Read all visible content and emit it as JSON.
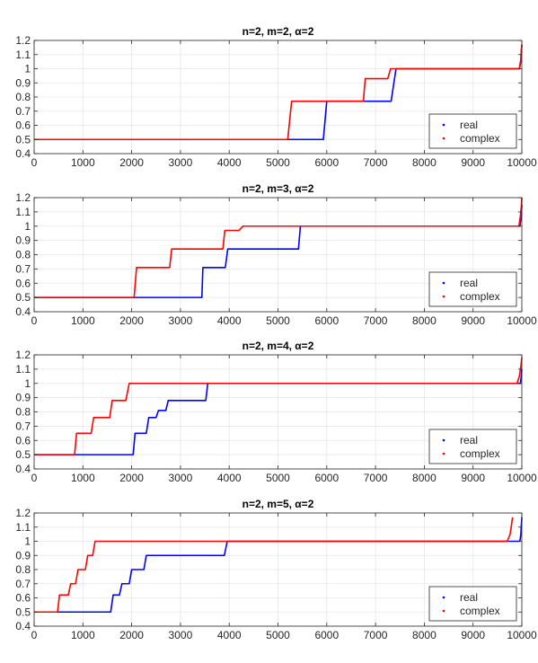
{
  "chart_data": [
    {
      "type": "line",
      "title": "n=2, m=2, α=2",
      "xlim": [
        0,
        10000
      ],
      "ylim": [
        0.4,
        1.2
      ],
      "xticks": [
        "0",
        "1000",
        "2000",
        "3000",
        "4000",
        "5000",
        "6000",
        "7000",
        "8000",
        "9000",
        "10000"
      ],
      "yticks": [
        "0.4",
        "0.5",
        "0.6",
        "0.7",
        "0.8",
        "0.9",
        "1",
        "1.1",
        "1.2"
      ],
      "grid": true,
      "legend": "bottom-right",
      "series": [
        {
          "name": "real",
          "color": "#0000ff",
          "x": [
            0,
            5930,
            6000,
            7320,
            7420,
            9950,
            9980,
            9990,
            10000
          ],
          "y": [
            0.5,
            0.5,
            0.77,
            0.77,
            1,
            1,
            1.05,
            1.12,
            1.17
          ]
        },
        {
          "name": "complex",
          "color": "#ff0000",
          "x": [
            0,
            5200,
            5280,
            6750,
            6790,
            7250,
            7310,
            9950,
            9980,
            9990,
            10000
          ],
          "y": [
            0.5,
            0.5,
            0.77,
            0.77,
            0.93,
            0.93,
            1,
            1,
            1.07,
            1.13,
            1.17
          ]
        }
      ]
    },
    {
      "type": "line",
      "title": "n=2, m=3, α=2",
      "xlim": [
        0,
        10000
      ],
      "ylim": [
        0.4,
        1.2
      ],
      "xticks": [
        "0",
        "1000",
        "2000",
        "3000",
        "4000",
        "5000",
        "6000",
        "7000",
        "8000",
        "9000",
        "10000"
      ],
      "yticks": [
        "0.4",
        "0.5",
        "0.6",
        "0.7",
        "0.8",
        "0.9",
        "1",
        "1.1",
        "1.2"
      ],
      "grid": true,
      "legend": "bottom-right",
      "series": [
        {
          "name": "real",
          "color": "#0000ff",
          "x": [
            0,
            3440,
            3460,
            3920,
            3970,
            5420,
            5460,
            9960,
            9990,
            10000
          ],
          "y": [
            0.5,
            0.5,
            0.71,
            0.71,
            0.84,
            0.84,
            1,
            1,
            1.08,
            1.15
          ]
        },
        {
          "name": "complex",
          "color": "#ff0000",
          "x": [
            0,
            2050,
            2100,
            2780,
            2820,
            3870,
            3910,
            4200,
            4280,
            9940,
            9970,
            9990,
            10000
          ],
          "y": [
            0.5,
            0.5,
            0.71,
            0.71,
            0.84,
            0.84,
            0.97,
            0.97,
            1,
            1,
            1.07,
            1.14,
            1.2
          ]
        }
      ]
    },
    {
      "type": "line",
      "title": "n=2, m=4, α=2",
      "xlim": [
        0,
        10000
      ],
      "ylim": [
        0.4,
        1.2
      ],
      "xticks": [
        "0",
        "1000",
        "2000",
        "3000",
        "4000",
        "5000",
        "6000",
        "7000",
        "8000",
        "9000",
        "10000"
      ],
      "yticks": [
        "0.4",
        "0.5",
        "0.6",
        "0.7",
        "0.8",
        "0.9",
        "1",
        "1.1",
        "1.2"
      ],
      "grid": true,
      "legend": "bottom-right",
      "series": [
        {
          "name": "real",
          "color": "#0000ff",
          "x": [
            0,
            2030,
            2070,
            2300,
            2350,
            2500,
            2550,
            2700,
            2750,
            3520,
            3560,
            9970,
            9990,
            10000
          ],
          "y": [
            0.5,
            0.5,
            0.65,
            0.65,
            0.76,
            0.76,
            0.81,
            0.81,
            0.88,
            0.88,
            1,
            1,
            1.05,
            1.1
          ]
        },
        {
          "name": "complex",
          "color": "#ff0000",
          "x": [
            0,
            830,
            870,
            1170,
            1220,
            1550,
            1600,
            1880,
            1950,
            9900,
            9950,
            9980,
            10000
          ],
          "y": [
            0.5,
            0.5,
            0.65,
            0.65,
            0.76,
            0.76,
            0.88,
            0.88,
            1,
            1,
            1.05,
            1.12,
            1.18
          ]
        }
      ]
    },
    {
      "type": "line",
      "title": "n=2, m=5, α=2",
      "xlim": [
        0,
        10000
      ],
      "ylim": [
        0.4,
        1.2
      ],
      "xticks": [
        "0",
        "1000",
        "2000",
        "3000",
        "4000",
        "5000",
        "6000",
        "7000",
        "8000",
        "9000",
        "10000"
      ],
      "yticks": [
        "0.4",
        "0.5",
        "0.6",
        "0.7",
        "0.8",
        "0.9",
        "1",
        "1.1",
        "1.2"
      ],
      "grid": true,
      "legend": "bottom-right",
      "series": [
        {
          "name": "real",
          "color": "#0000ff",
          "x": [
            0,
            1570,
            1620,
            1750,
            1800,
            1950,
            2000,
            2250,
            2300,
            3900,
            3960,
            9960,
            9980,
            10000
          ],
          "y": [
            0.5,
            0.5,
            0.62,
            0.62,
            0.7,
            0.7,
            0.8,
            0.8,
            0.9,
            0.9,
            1,
            1,
            1.05,
            1.17
          ]
        },
        {
          "name": "complex",
          "color": "#ff0000",
          "x": [
            0,
            480,
            520,
            700,
            750,
            850,
            900,
            1050,
            1100,
            1200,
            1250,
            9700,
            9760,
            9790,
            9810
          ],
          "y": [
            0.5,
            0.5,
            0.62,
            0.62,
            0.7,
            0.7,
            0.8,
            0.8,
            0.9,
            0.9,
            1,
            1,
            1.05,
            1.12,
            1.17
          ]
        }
      ]
    }
  ]
}
